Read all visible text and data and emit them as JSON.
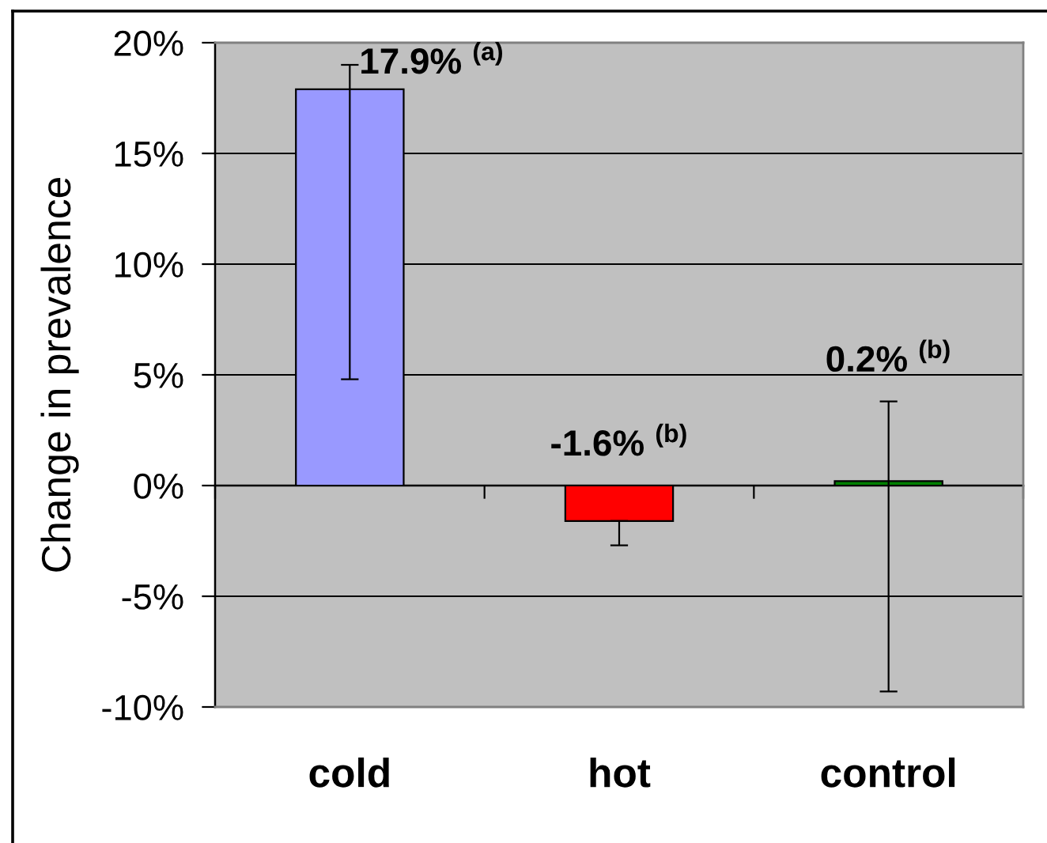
{
  "chart_data": {
    "type": "bar",
    "ylabel": "Change in prevalence",
    "categories": [
      "cold",
      "hot",
      "control"
    ],
    "values": [
      17.9,
      -1.6,
      0.2
    ],
    "colors": [
      "#9999ff",
      "#ff0000",
      "#008000"
    ],
    "errors": [
      [
        4.8,
        19.0
      ],
      [
        -2.7,
        -1.6
      ],
      [
        -9.3,
        3.8
      ]
    ],
    "value_labels": [
      "17.9% $^{(a)}$",
      "-1.6% $^{(b)}$",
      "0.2% $^{(b)}$"
    ],
    "ylim": [
      -10,
      20
    ],
    "yticks": [
      {
        "value": -10,
        "label": "-10%"
      },
      {
        "value": -5,
        "label": "-5%"
      },
      {
        "value": 0,
        "label": "0%"
      },
      {
        "value": 5,
        "label": "5%"
      },
      {
        "value": 10,
        "label": "10%"
      },
      {
        "value": 15,
        "label": "15%"
      },
      {
        "value": 20,
        "label": "20%"
      }
    ],
    "grid": "y"
  }
}
